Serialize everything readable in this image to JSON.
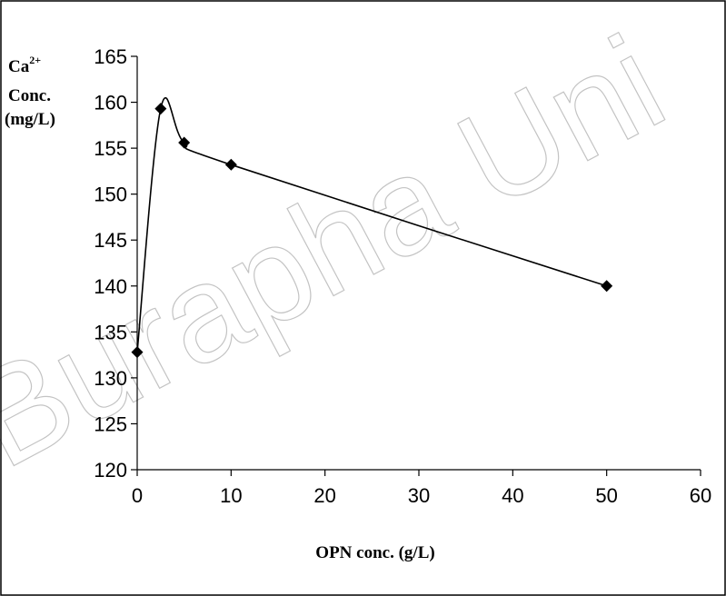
{
  "chart_data": {
    "type": "line",
    "title": "",
    "xlabel": "OPN conc. (g/L)",
    "ylabel_lines": [
      "Ca",
      "2+",
      "Conc.",
      "(mg/L)"
    ],
    "xlim": [
      0,
      60
    ],
    "ylim": [
      120,
      165
    ],
    "x_ticks": [
      0,
      10,
      20,
      30,
      40,
      50,
      60
    ],
    "y_ticks": [
      120,
      125,
      130,
      135,
      140,
      145,
      150,
      155,
      160,
      165
    ],
    "grid": false,
    "legend": "none",
    "marker": "diamond",
    "smoothed": true,
    "series": [
      {
        "x": [
          0,
          2.5,
          5,
          10,
          50
        ],
        "y": [
          132.8,
          159.3,
          155.6,
          153.2,
          140.0
        ]
      }
    ],
    "colors": {
      "line": "#000000",
      "marker": "#000000",
      "watermark": "#bdbdbd"
    }
  },
  "watermark": {
    "text": "Burapha Uni"
  }
}
